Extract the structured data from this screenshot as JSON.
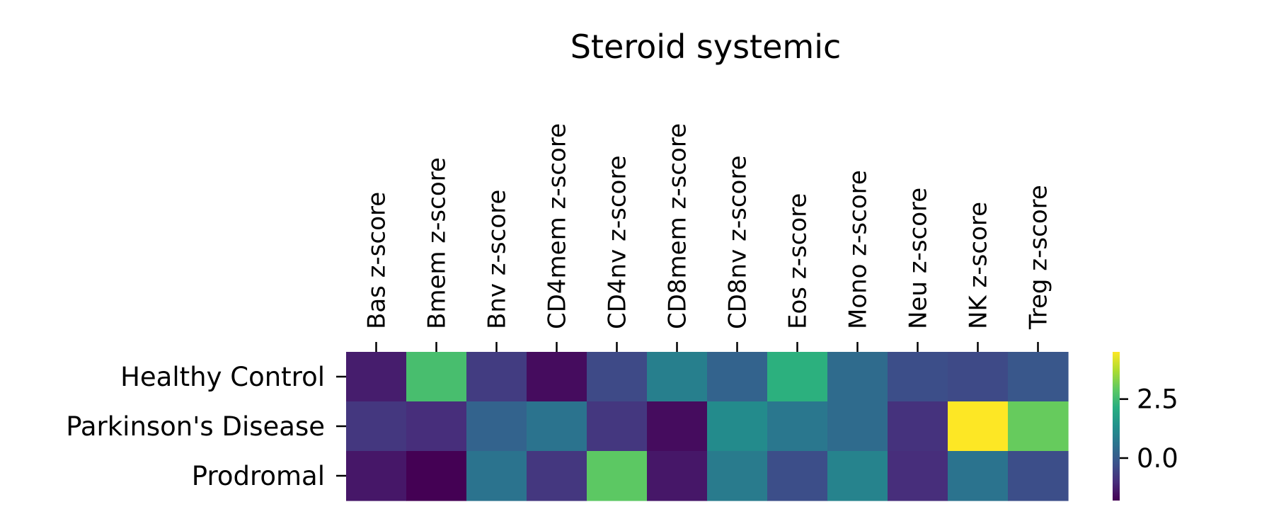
{
  "chart_data": {
    "type": "heatmap",
    "title": "Steroid systemic",
    "columns": [
      "Bas z-score",
      "Bmem z-score",
      "Bnv z-score",
      "CD4mem z-score",
      "CD4nv z-score",
      "CD8mem z-score",
      "CD8nv z-score",
      "Eos z-score",
      "Mono z-score",
      "Neu z-score",
      "NK z-score",
      "Treg z-score"
    ],
    "rows": [
      "Healthy Control",
      "Parkinson's Disease",
      "Prodromal"
    ],
    "values": [
      [
        -1.3,
        2.6,
        -0.7,
        -1.6,
        -0.4,
        0.9,
        0.2,
        2.2,
        0.4,
        -0.3,
        -0.4,
        -0.1
      ],
      [
        -0.8,
        -1.0,
        0.2,
        0.6,
        -0.8,
        -1.6,
        1.2,
        0.7,
        0.4,
        -0.9,
        4.5,
        3.0
      ],
      [
        -1.4,
        -1.8,
        0.6,
        -0.8,
        2.9,
        -1.4,
        0.8,
        -0.3,
        1.0,
        -1.0,
        0.6,
        -0.3
      ]
    ],
    "colormap": "viridis",
    "colorbar": {
      "ticks": [
        2.5,
        0.0
      ],
      "tick_labels": [
        "2.5",
        "0.0"
      ],
      "range": [
        -1.8,
        4.5
      ]
    }
  }
}
